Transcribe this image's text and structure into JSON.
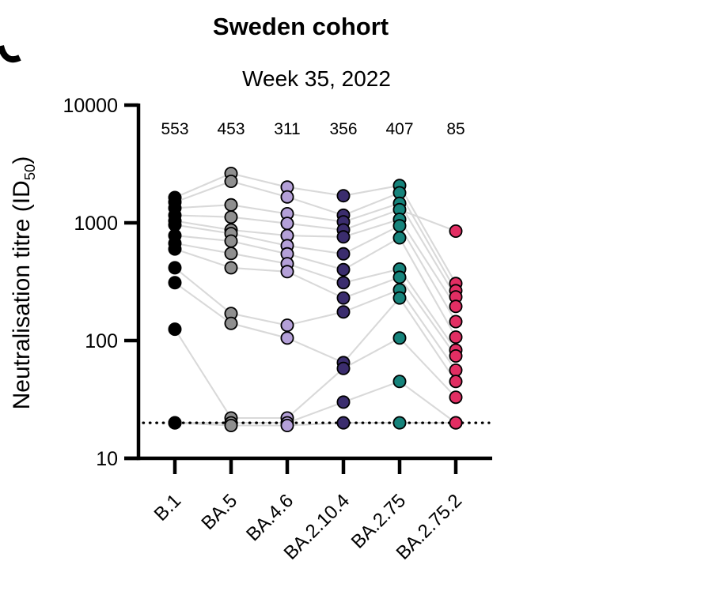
{
  "header": {
    "title": "Sweden cohort",
    "subtitle": "Week 35, 2022"
  },
  "y_axis": {
    "label_main": "Neutralisation titre (ID",
    "label_sub": "50",
    "label_close": ")"
  },
  "chart_data": {
    "type": "scatter",
    "title": "Sweden cohort",
    "subtitle": "Week 35, 2022",
    "ylabel": "Neutralisation titre (ID50)",
    "yscale": "log",
    "ylim": [
      10,
      10000
    ],
    "yticks": [
      10000,
      1000,
      100,
      10
    ],
    "grid": false,
    "legend": "none",
    "limit_of_detection": 20,
    "paired_lines": true,
    "categories": [
      "B.1",
      "BA.5",
      "BA.4.6",
      "BA.2.10.4",
      "BA.2.75",
      "BA.2.75.2"
    ],
    "gmt_labels": [
      "553",
      "453",
      "311",
      "356",
      "407",
      "85"
    ],
    "category_colors": [
      "#000000",
      "#8f8f8f",
      "#b4a0d8",
      "#3b2d6e",
      "#16837b",
      "#e22e63"
    ],
    "line_color": "#d9d9d9",
    "lod_line_color": "#000000",
    "participants": [
      [
        1640,
        2625,
        2010,
        1700,
        2075,
        305
      ],
      [
        1500,
        2250,
        1660,
        1160,
        1800,
        265
      ],
      [
        1335,
        1420,
        1195,
        1020,
        1465,
        235
      ],
      [
        1160,
        1120,
        990,
        870,
        1295,
        850
      ],
      [
        1040,
        870,
        780,
        760,
        1070,
        195
      ],
      [
        960,
        810,
        640,
        545,
        945,
        145
      ],
      [
        780,
        700,
        545,
        400,
        745,
        107
      ],
      [
        670,
        550,
        450,
        310,
        405,
        83
      ],
      [
        600,
        415,
        385,
        230,
        345,
        74
      ],
      [
        415,
        170,
        135,
        175,
        270,
        56
      ],
      [
        310,
        140,
        105,
        65,
        230,
        45
      ],
      [
        125,
        22,
        22,
        58,
        105,
        33
      ],
      [
        20,
        20,
        20,
        30,
        45,
        20
      ],
      [
        20,
        19,
        19,
        20,
        20,
        20
      ]
    ]
  }
}
